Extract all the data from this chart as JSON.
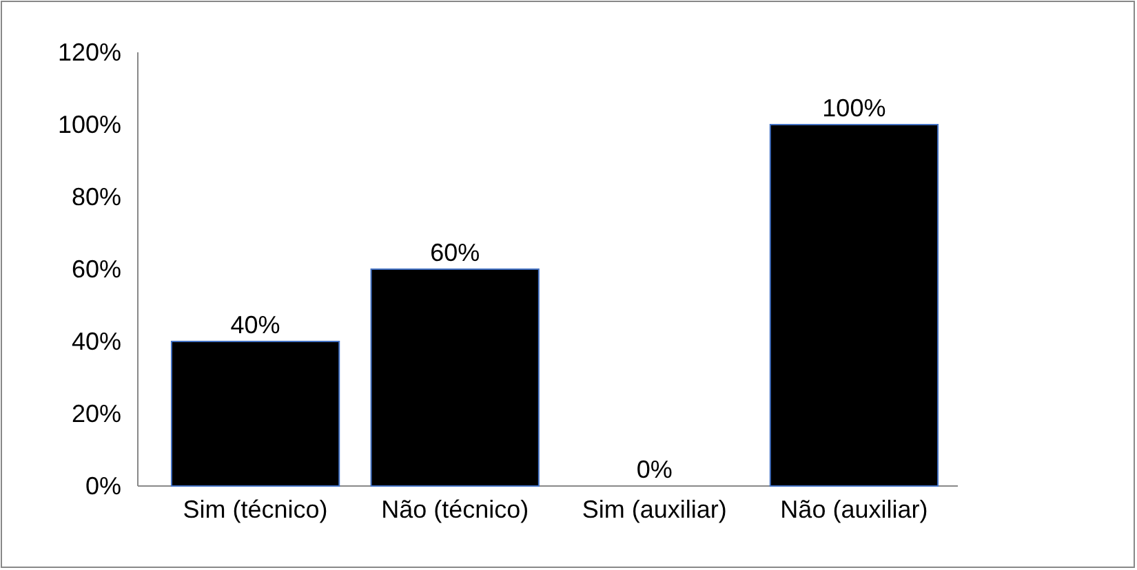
{
  "chart_data": {
    "type": "bar",
    "categories": [
      "Sim (técnico)",
      "Não (técnico)",
      "Sim (auxiliar)",
      "Não (auxiliar)"
    ],
    "values": [
      40,
      60,
      0,
      100
    ],
    "value_labels": [
      "40%",
      "60%",
      "0%",
      "100%"
    ],
    "color": "#000000",
    "ylim": [
      0,
      120
    ],
    "yticks": [
      {
        "value": 0,
        "label": "0%"
      },
      {
        "value": 20,
        "label": "20%"
      },
      {
        "value": 40,
        "label": "40%"
      },
      {
        "value": 60,
        "label": "60%"
      },
      {
        "value": 80,
        "label": "80%"
      },
      {
        "value": 100,
        "label": "100%"
      },
      {
        "value": 120,
        "label": "120%"
      }
    ],
    "grid": false
  }
}
